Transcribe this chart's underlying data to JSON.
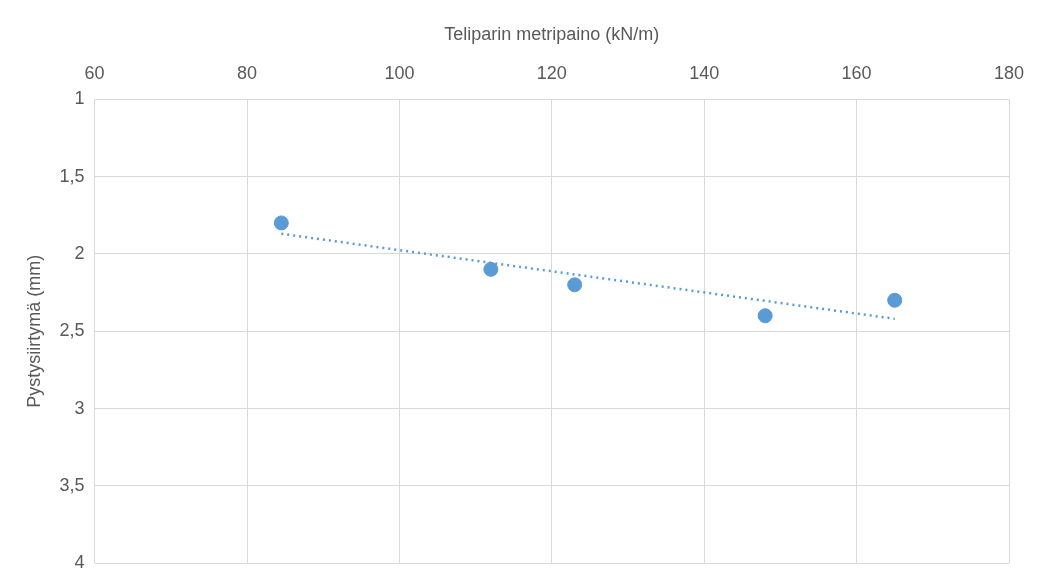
{
  "chart_data": {
    "type": "scatter",
    "xlabel": "Teliparin metripaino (kN/m)",
    "ylabel": "Pystysiirtymä (mm)",
    "xlim": [
      60,
      180
    ],
    "xticks": [
      60,
      80,
      100,
      120,
      140,
      160,
      180
    ],
    "ylim": [
      4,
      1
    ],
    "yticks": [
      {
        "value": 1,
        "label": "1"
      },
      {
        "value": 1.5,
        "label": "1,5"
      },
      {
        "value": 2,
        "label": "2"
      },
      {
        "value": 2.5,
        "label": "2,5"
      },
      {
        "value": 3,
        "label": "3"
      },
      {
        "value": 3.5,
        "label": "3,5"
      },
      {
        "value": 4,
        "label": "4"
      }
    ],
    "grid": true,
    "legend": false,
    "series": [
      {
        "type": "scatter",
        "color": "#5b9bd5",
        "marker": "circle",
        "x": [
          84.5,
          112,
          123,
          148,
          165
        ],
        "values": [
          1.8,
          2.1,
          2.2,
          2.4,
          2.3
        ]
      },
      {
        "type": "line",
        "color": "#5b9bd5",
        "marker": "none",
        "line_style": "dotted",
        "x": [
          84.5,
          165
        ],
        "values": [
          1.87,
          2.42
        ]
      }
    ]
  }
}
